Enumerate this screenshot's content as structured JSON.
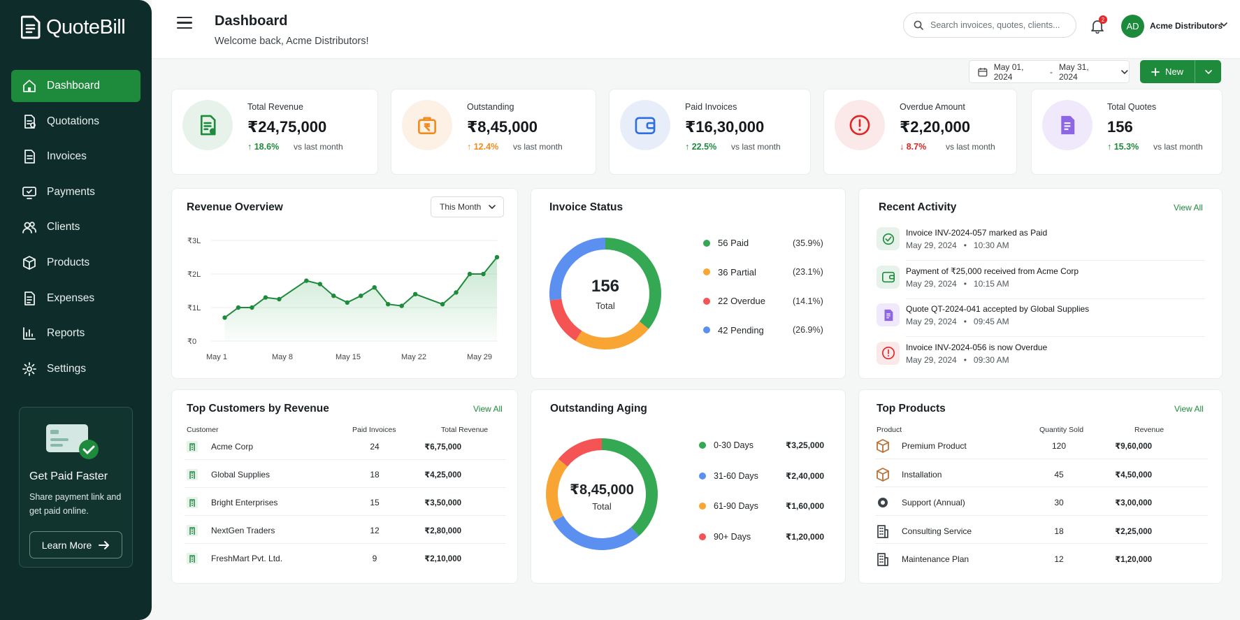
{
  "app": {
    "name": "QuoteBill"
  },
  "sidebar": {
    "items": [
      {
        "label": "Dashboard",
        "icon": "home-icon",
        "active": true
      },
      {
        "label": "Quotations",
        "icon": "quotation-icon"
      },
      {
        "label": "Invoices",
        "icon": "invoice-icon"
      },
      {
        "label": "Payments",
        "icon": "payment-icon"
      },
      {
        "label": "Clients",
        "icon": "clients-icon"
      },
      {
        "label": "Products",
        "icon": "box-icon"
      },
      {
        "label": "Expenses",
        "icon": "expense-icon"
      },
      {
        "label": "Reports",
        "icon": "reports-icon"
      },
      {
        "label": "Settings",
        "icon": "gear-icon"
      }
    ],
    "promo": {
      "title": "Get Paid Faster",
      "text": "Share payment link and get paid online.",
      "button": "Learn More"
    }
  },
  "header": {
    "title": "Dashboard",
    "subtitle": "Welcome back, Acme Distributors!",
    "search_placeholder": "Search invoices, quotes, clients...",
    "notifications": "2",
    "avatar_initials": "AD",
    "user_name": "Acme Distributors"
  },
  "toolbar": {
    "date_from": "May 01, 2024",
    "date_sep": "-",
    "date_to": "May 31, 2024",
    "new_label": "New"
  },
  "kpis": [
    {
      "label": "Total Revenue",
      "value": "₹24,75,000",
      "change": "18.6%",
      "arrow": "↑",
      "vs": "vs last month",
      "icon": "revenue-doc-icon",
      "color": "#1e8a3c",
      "bg": "#e7f3ea"
    },
    {
      "label": "Outstanding",
      "value": "₹8,45,000",
      "change": "12.4%",
      "arrow": "↑",
      "vs": "vs last month",
      "icon": "outstanding-bag-icon",
      "color": "#f28a1c",
      "bg": "#fdf0e5"
    },
    {
      "label": "Paid Invoices",
      "value": "₹16,30,000",
      "change": "22.5%",
      "arrow": "↑",
      "vs": "vs last month",
      "icon": "wallet-icon",
      "color": "#2d6fe0",
      "bg": "#e8eef9"
    },
    {
      "label": "Overdue Amount",
      "value": "₹2,20,000",
      "change": "8.7%",
      "arrow": "↓",
      "vs": "vs last month",
      "icon": "alert-icon",
      "color": "#e02424",
      "bg": "#fbe9e9"
    },
    {
      "label": "Total Quotes",
      "value": "156",
      "change": "15.3%",
      "arrow": "↑",
      "vs": "vs last month",
      "icon": "quote-doc-icon",
      "color": "#7b4fe0",
      "bg": "#efe9fb"
    }
  ],
  "revenue": {
    "title": "Revenue Overview",
    "period": "This Month",
    "chart_data": {
      "type": "area",
      "x_ticks": [
        "May 1",
        "May 8",
        "May 15",
        "May 22",
        "May 29"
      ],
      "y_ticks": [
        "₹0",
        "₹1L",
        "₹2L",
        "₹3L"
      ],
      "ylim": [
        0,
        3
      ],
      "series": [
        {
          "values": [
            0.7,
            1.0,
            1.0,
            1.3,
            1.25,
            1.8,
            1.7,
            1.35,
            1.15,
            1.35,
            1.6,
            1.1,
            1.05,
            1.4,
            1.1,
            1.45,
            2.0,
            2.0,
            2.5
          ]
        }
      ],
      "x_index": [
        1,
        2,
        3,
        4,
        5,
        7,
        8,
        9,
        10,
        11,
        12,
        13,
        14,
        15,
        17,
        18,
        19,
        20,
        21
      ],
      "x_range": [
        0,
        21
      ],
      "color": "#1e8a3c"
    }
  },
  "invoice_status": {
    "title": "Invoice Status",
    "total": "156",
    "total_label": "Total",
    "chart_data": {
      "type": "pie",
      "categories": [
        "Paid",
        "Partial",
        "Overdue",
        "Pending"
      ],
      "values": [
        56,
        36,
        22,
        42
      ],
      "colors": [
        "#34a853",
        "#f9a533",
        "#f55454",
        "#5b8ff0"
      ]
    },
    "legend": [
      {
        "label": "56 Paid",
        "pct": "(35.9%)",
        "color": "#34a853"
      },
      {
        "label": "36 Partial",
        "pct": "(23.1%)",
        "color": "#f9a533"
      },
      {
        "label": "22 Overdue",
        "pct": "(14.1%)",
        "color": "#f55454"
      },
      {
        "label": "42 Pending",
        "pct": "(26.9%)",
        "color": "#5b8ff0"
      }
    ]
  },
  "activity": {
    "title": "Recent Activity",
    "view_all": "View All",
    "items": [
      {
        "title": "Invoice INV-2024-057 marked as Paid",
        "date": "May 29, 2024",
        "time": "10:30 AM",
        "icon": "check-circle-icon",
        "color": "#1e8a3c",
        "bg": "#e7f3ea"
      },
      {
        "title": "Payment of ₹25,000 received from Acme Corp",
        "date": "May 29, 2024",
        "time": "10:15 AM",
        "icon": "wallet-icon",
        "color": "#1e8a3c",
        "bg": "#e7f3ea"
      },
      {
        "title": "Quote QT-2024-041 accepted by Global Supplies",
        "date": "May 29, 2024",
        "time": "09:45 AM",
        "icon": "quote-doc-icon",
        "color": "#7b4fe0",
        "bg": "#efe9fb"
      },
      {
        "title": "Invoice INV-2024-056 is now Overdue",
        "date": "May 29, 2024",
        "time": "09:30 AM",
        "icon": "alert-icon",
        "color": "#e02424",
        "bg": "#fbe9e9"
      }
    ]
  },
  "customers": {
    "title": "Top Customers by Revenue",
    "view_all": "View All",
    "columns": [
      "Customer",
      "Paid Invoices",
      "Total Revenue"
    ],
    "rows": [
      {
        "name": "Acme Corp",
        "paid": "24",
        "revenue": "₹6,75,000"
      },
      {
        "name": "Global Supplies",
        "paid": "18",
        "revenue": "₹4,25,000"
      },
      {
        "name": "Bright Enterprises",
        "paid": "15",
        "revenue": "₹3,50,000"
      },
      {
        "name": "NextGen Traders",
        "paid": "12",
        "revenue": "₹2,80,000"
      },
      {
        "name": "FreshMart Pvt. Ltd.",
        "paid": "9",
        "revenue": "₹2,10,000"
      }
    ]
  },
  "aging": {
    "title": "Outstanding Aging",
    "total": "₹8,45,000",
    "total_label": "Total",
    "chart_data": {
      "type": "pie",
      "categories": [
        "0-30 Days",
        "31-60 Days",
        "61-90 Days",
        "90+ Days"
      ],
      "values": [
        325000,
        240000,
        160000,
        120000
      ],
      "colors": [
        "#34a853",
        "#5b8ff0",
        "#f9a533",
        "#f55454"
      ]
    },
    "legend": [
      {
        "label": "0-30 Days",
        "amount": "₹3,25,000",
        "color": "#34a853"
      },
      {
        "label": "31-60 Days",
        "amount": "₹2,40,000",
        "color": "#5b8ff0"
      },
      {
        "label": "61-90 Days",
        "amount": "₹1,60,000",
        "color": "#f9a533"
      },
      {
        "label": "90+ Days",
        "amount": "₹1,20,000",
        "color": "#f55454"
      }
    ]
  },
  "products": {
    "title": "Top Products",
    "view_all": "View All",
    "columns": [
      "Product",
      "Quantity Sold",
      "Revenue"
    ],
    "rows": [
      {
        "name": "Premium Product",
        "qty": "120",
        "revenue": "₹9,60,000",
        "icon": "box-icon"
      },
      {
        "name": "Installation",
        "qty": "45",
        "revenue": "₹4,50,000",
        "icon": "box-icon"
      },
      {
        "name": "Support (Annual)",
        "qty": "30",
        "revenue": "₹3,00,000",
        "icon": "support-icon"
      },
      {
        "name": "Consulting Service",
        "qty": "18",
        "revenue": "₹2,25,000",
        "icon": "building-icon"
      },
      {
        "name": "Maintenance Plan",
        "qty": "12",
        "revenue": "₹1,20,000",
        "icon": "building-icon"
      }
    ]
  }
}
